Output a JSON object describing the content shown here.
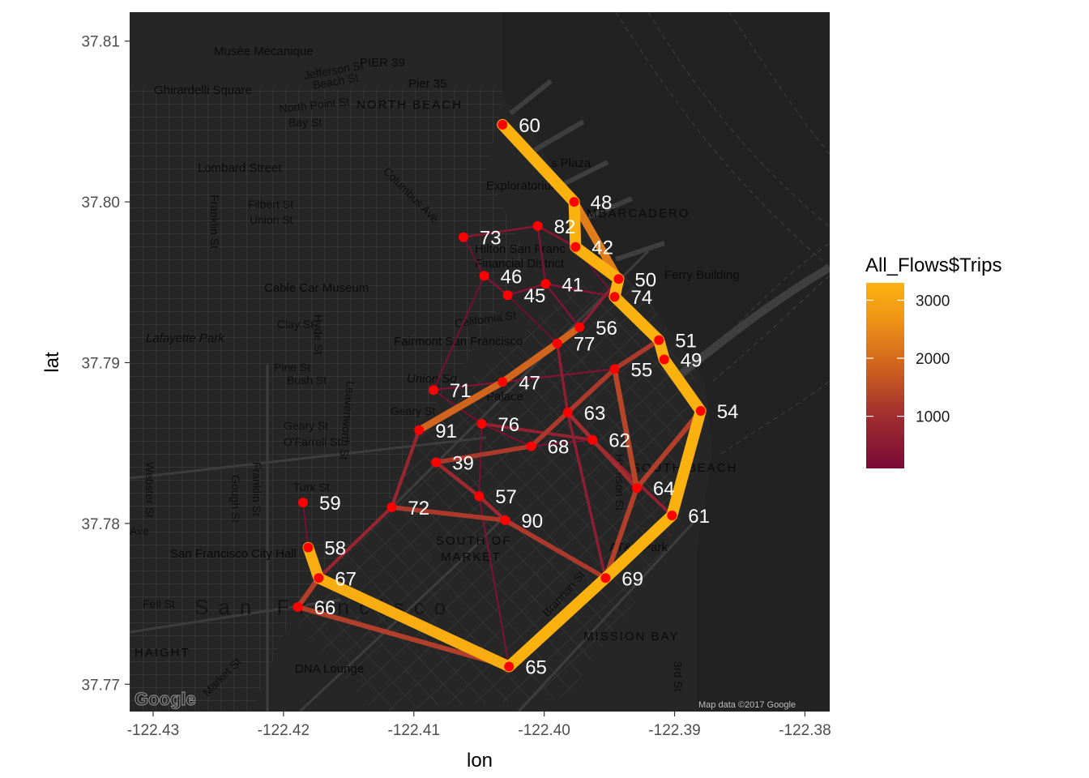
{
  "axes": {
    "x_title": "lon",
    "y_title": "lat",
    "x_ticks": [
      "-122.43",
      "-122.42",
      "-122.41",
      "-122.40",
      "-122.39",
      "-122.38"
    ],
    "y_ticks": [
      "37.81",
      "37.80",
      "37.79",
      "37.78",
      "37.77"
    ]
  },
  "legend": {
    "title": "All_Flows$Trips",
    "ticks": [
      "3000",
      "2000",
      "1000"
    ],
    "colors": [
      "#7a0a35",
      "#a3302f",
      "#d0631e",
      "#ef9316",
      "#fbb20f"
    ]
  },
  "basemap": {
    "attribution": "Map data ©2017 Google",
    "logo_text": "Google",
    "labels": [
      "Musée Mécanique",
      "PIER 39",
      "Jefferson St",
      "Beach St",
      "Pier 35",
      "Ghirardelli Square",
      "North Point St",
      "NORTH BEACH",
      "Bay St",
      "Lombard Street",
      "Exploratorium",
      "Filbert St",
      "Union St",
      "Franklin St",
      "Columbus Ave",
      "EMBARCADERO",
      "Hilton San Franc",
      "Financial District",
      "Cable Car Museum",
      "Clay St",
      "Lafayette Park",
      "Hyde St",
      "California St",
      "Fairmont San Francisco",
      "Pine St",
      "Bush St",
      "Leavenworth St",
      "Union Sq",
      "Palace",
      "Geary St",
      "O'Farrell St",
      "Webster St",
      "Franklin St",
      "Gough St",
      "Turk St",
      "Ave",
      "San Francisco City Hall",
      "SOUTH OF",
      "MARKET",
      "Fell St",
      "San Francisco",
      "HAIGHT",
      "DNA Lounge",
      "Market St",
      "Brannan St",
      "MISSION BAY",
      "AT&T Park",
      "SOUTH BEACH",
      "3rd St",
      "Ferry Building",
      "s Plaza",
      "Harrison St"
    ]
  },
  "chart_data": {
    "type": "map",
    "xlabel": "lon",
    "ylabel": "lat",
    "xlim": [
      -122.4318,
      -122.3781
    ],
    "ylim": [
      37.7683,
      37.8118
    ],
    "color_scale": {
      "variable": "All_Flows$Trips",
      "range": [
        100,
        3300
      ],
      "breaks": [
        1000,
        2000,
        3000
      ],
      "low_color": "#7a0a35",
      "high_color": "#fbb20f"
    },
    "stations": [
      {
        "id": "60",
        "lon": -122.4032,
        "lat": 37.8048
      },
      {
        "id": "48",
        "lon": -122.3977,
        "lat": 37.8
      },
      {
        "id": "82",
        "lon": -122.4005,
        "lat": 37.7985
      },
      {
        "id": "73",
        "lon": -122.4062,
        "lat": 37.7978
      },
      {
        "id": "42",
        "lon": -122.3976,
        "lat": 37.7972
      },
      {
        "id": "46",
        "lon": -122.4046,
        "lat": 37.7954
      },
      {
        "id": "41",
        "lon": -122.3999,
        "lat": 37.7949
      },
      {
        "id": "50",
        "lon": -122.3943,
        "lat": 37.7952
      },
      {
        "id": "45",
        "lon": -122.4028,
        "lat": 37.7942
      },
      {
        "id": "74",
        "lon": -122.3946,
        "lat": 37.7941
      },
      {
        "id": "56",
        "lon": -122.3973,
        "lat": 37.7922
      },
      {
        "id": "51",
        "lon": -122.3912,
        "lat": 37.7914
      },
      {
        "id": "77",
        "lon": -122.399,
        "lat": 37.7912
      },
      {
        "id": "49",
        "lon": -122.3908,
        "lat": 37.7902
      },
      {
        "id": "55",
        "lon": -122.3946,
        "lat": 37.7896
      },
      {
        "id": "47",
        "lon": -122.4032,
        "lat": 37.7888
      },
      {
        "id": "71",
        "lon": -122.4085,
        "lat": 37.7883
      },
      {
        "id": "54",
        "lon": -122.388,
        "lat": 37.787
      },
      {
        "id": "63",
        "lon": -122.3982,
        "lat": 37.7869
      },
      {
        "id": "76",
        "lon": -122.4048,
        "lat": 37.7862
      },
      {
        "id": "91",
        "lon": -122.4096,
        "lat": 37.7858
      },
      {
        "id": "62",
        "lon": -122.3963,
        "lat": 37.7852
      },
      {
        "id": "68",
        "lon": -122.401,
        "lat": 37.7848
      },
      {
        "id": "39",
        "lon": -122.4083,
        "lat": 37.7838
      },
      {
        "id": "64",
        "lon": -122.3929,
        "lat": 37.7822
      },
      {
        "id": "59",
        "lon": -122.4185,
        "lat": 37.7813
      },
      {
        "id": "57",
        "lon": -122.405,
        "lat": 37.7817
      },
      {
        "id": "72",
        "lon": -122.4117,
        "lat": 37.781
      },
      {
        "id": "61",
        "lon": -122.3902,
        "lat": 37.7805
      },
      {
        "id": "90",
        "lon": -122.403,
        "lat": 37.7802
      },
      {
        "id": "58",
        "lon": -122.4181,
        "lat": 37.7785
      },
      {
        "id": "67",
        "lon": -122.4173,
        "lat": 37.7766
      },
      {
        "id": "69",
        "lon": -122.3953,
        "lat": 37.7766
      },
      {
        "id": "66",
        "lon": -122.4189,
        "lat": 37.7748
      },
      {
        "id": "65",
        "lon": -122.4027,
        "lat": 37.7711
      }
    ],
    "flows": [
      {
        "path": [
          "60",
          "48",
          "42",
          "50",
          "74",
          "51",
          "49",
          "54",
          "61",
          "69",
          "65"
        ],
        "trips": 3300
      },
      {
        "path": [
          "65",
          "67",
          "58"
        ],
        "trips": 3200
      },
      {
        "path": [
          "60",
          "48",
          "50"
        ],
        "trips": 2300
      },
      {
        "path": [
          "69",
          "61",
          "54"
        ],
        "trips": 2000
      },
      {
        "path": [
          "56",
          "77",
          "47",
          "91"
        ],
        "trips": 1900
      },
      {
        "path": [
          "65",
          "66",
          "67"
        ],
        "trips": 1300
      },
      {
        "path": [
          "51",
          "55",
          "63",
          "68",
          "39"
        ],
        "trips": 1200
      },
      {
        "path": [
          "55",
          "64"
        ],
        "trips": 1400
      },
      {
        "path": [
          "54",
          "64",
          "69"
        ],
        "trips": 1300
      },
      {
        "path": [
          "72",
          "90",
          "69"
        ],
        "trips": 1200
      },
      {
        "path": [
          "39",
          "57",
          "90"
        ],
        "trips": 900
      },
      {
        "path": [
          "91",
          "72",
          "67"
        ],
        "trips": 800
      },
      {
        "path": [
          "76",
          "62",
          "61"
        ],
        "trips": 700
      },
      {
        "path": [
          "63",
          "64"
        ],
        "trips": 1000
      },
      {
        "path": [
          "50",
          "56",
          "77",
          "63",
          "69"
        ],
        "trips": 600
      },
      {
        "path": [
          "73",
          "82",
          "42"
        ],
        "trips": 400
      },
      {
        "path": [
          "46",
          "45",
          "41",
          "74"
        ],
        "trips": 350
      },
      {
        "path": [
          "82",
          "41",
          "56"
        ],
        "trips": 300
      },
      {
        "path": [
          "71",
          "47",
          "55"
        ],
        "trips": 300
      },
      {
        "path": [
          "76",
          "68",
          "62"
        ],
        "trips": 250
      },
      {
        "path": [
          "57",
          "65"
        ],
        "trips": 250
      },
      {
        "path": [
          "59",
          "58"
        ],
        "trips": 200
      },
      {
        "path": [
          "46",
          "71",
          "76",
          "57"
        ],
        "trips": 200
      },
      {
        "path": [
          "73",
          "46"
        ],
        "trips": 150
      },
      {
        "path": [
          "49",
          "54"
        ],
        "trips": 200
      },
      {
        "path": [
          "45",
          "77"
        ],
        "trips": 150
      },
      {
        "path": [
          "42",
          "74"
        ],
        "trips": 150
      }
    ]
  }
}
